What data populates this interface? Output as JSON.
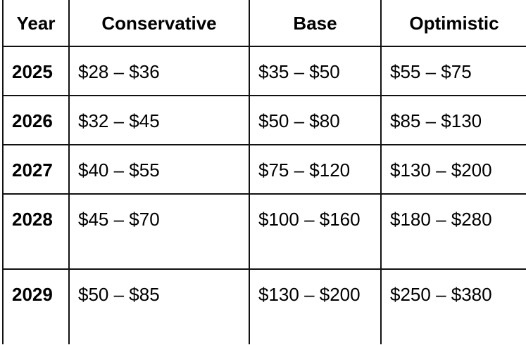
{
  "headers": [
    "Year",
    "Conservative",
    "Base",
    "Optimistic"
  ],
  "rows": [
    {
      "year": "2025",
      "conservative": "$28 – $36",
      "base": "$35 – $50",
      "optimistic": "$55 – $75"
    },
    {
      "year": "2026",
      "conservative": "$32 – $45",
      "base": "$50 – $80",
      "optimistic": "$85 – $130"
    },
    {
      "year": "2027",
      "conservative": "$40 – $55",
      "base": "$75 – $120",
      "optimistic": "$130 – $200"
    },
    {
      "year": "2028",
      "conservative": "$45 – $70",
      "base": "$100 – $160",
      "optimistic": "$180 – $280"
    },
    {
      "year": "2029",
      "conservative": "$50 – $85",
      "base": "$130 – $200",
      "optimistic": "$250 – $380"
    }
  ]
}
